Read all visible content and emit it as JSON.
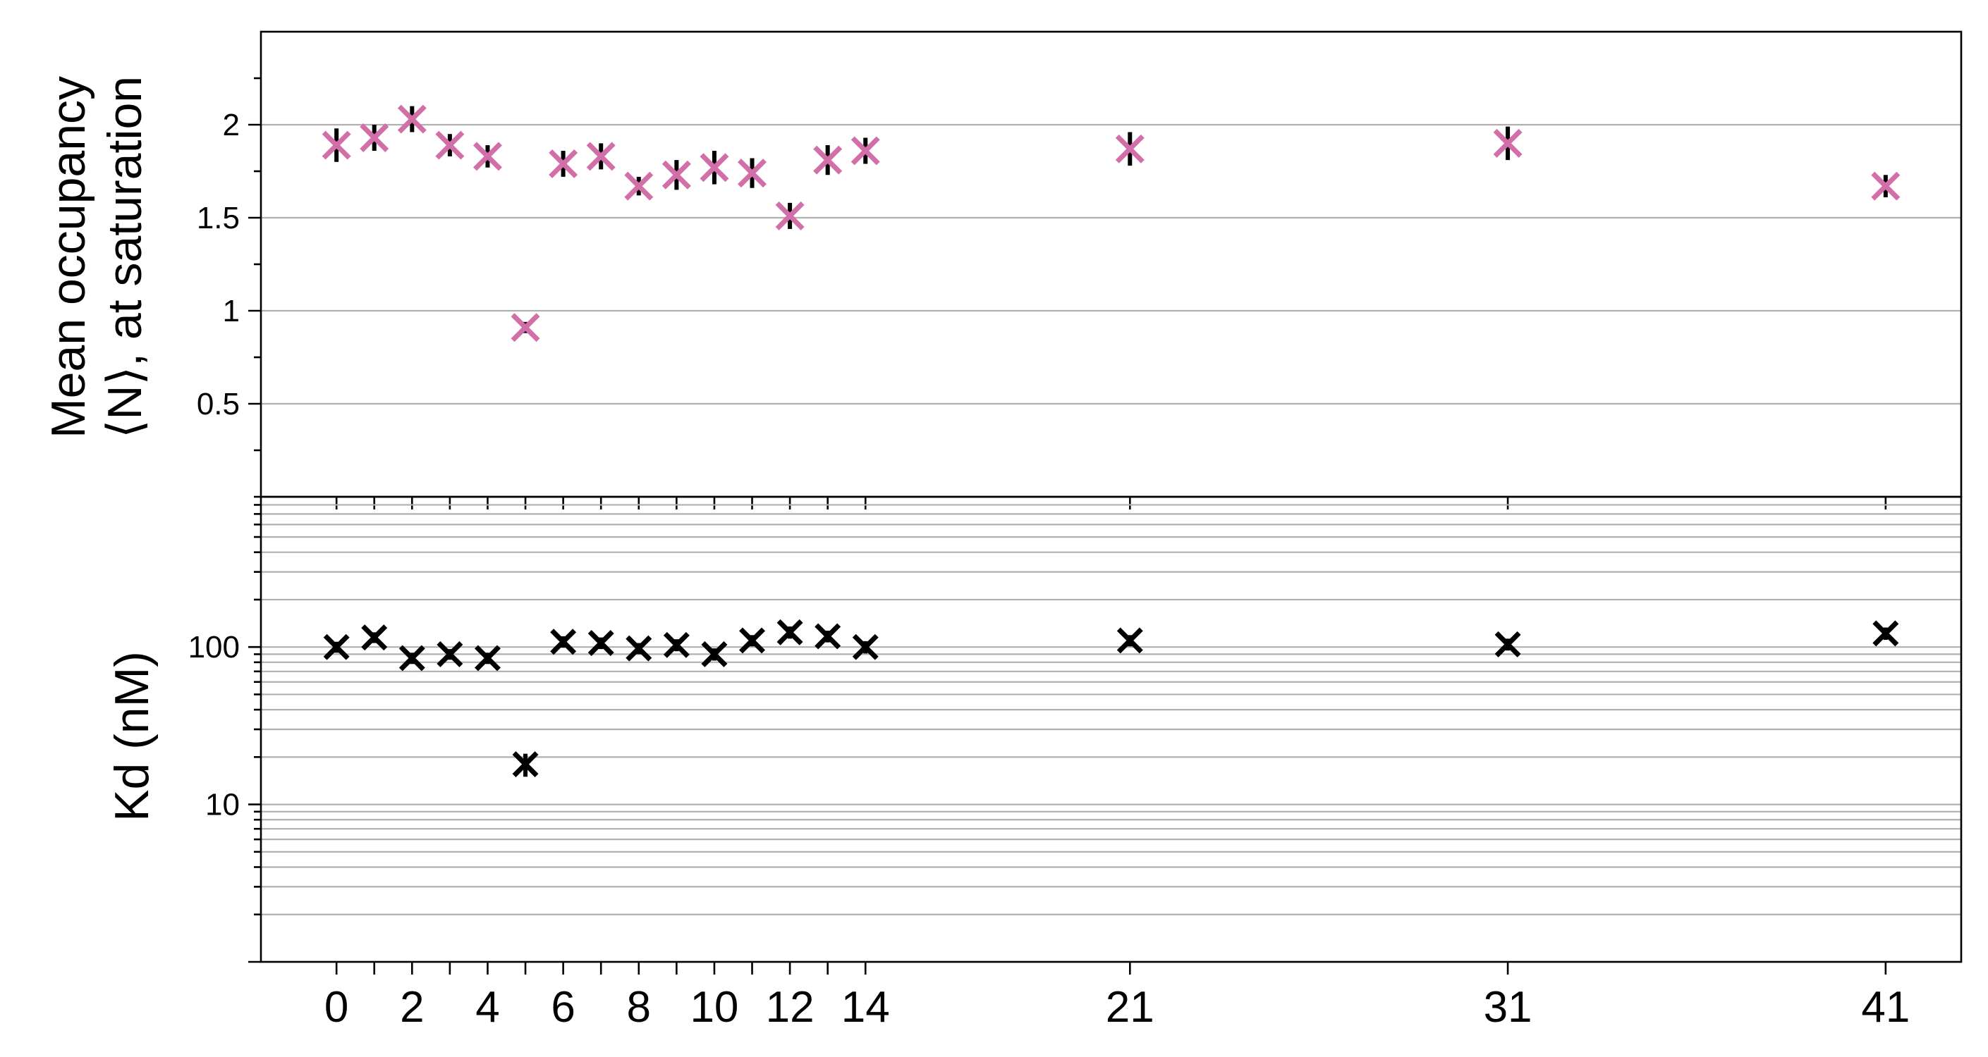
{
  "chart_data": [
    {
      "type": "scatter",
      "panel": "top",
      "ylabel_lines": [
        "Mean occupancy",
        "⟨N⟩, at saturation"
      ],
      "xlabel": "",
      "x": [
        0,
        1,
        2,
        3,
        4,
        5,
        6,
        7,
        8,
        9,
        10,
        11,
        12,
        13,
        14,
        21,
        31,
        41
      ],
      "series": [
        {
          "values": [
            1.89,
            1.93,
            2.03,
            1.89,
            1.83,
            0.91,
            1.79,
            1.83,
            1.67,
            1.73,
            1.77,
            1.74,
            1.51,
            1.81,
            1.86,
            1.87,
            1.9,
            1.67
          ],
          "errors": [
            0.09,
            0.07,
            0.07,
            0.06,
            0.06,
            0.03,
            0.07,
            0.07,
            0.05,
            0.08,
            0.09,
            0.08,
            0.07,
            0.08,
            0.07,
            0.09,
            0.09,
            0.06
          ],
          "marker": "x",
          "marker_color": "#d36fa8",
          "errorbar_color": "#000000"
        }
      ],
      "ylim": [
        0,
        2.5
      ],
      "yticks": [
        0.5,
        1,
        1.5,
        2
      ],
      "ytick_labels": [
        "0.5",
        "1",
        "1.5",
        "2"
      ],
      "grid": "horizontal"
    },
    {
      "type": "scatter",
      "panel": "bottom",
      "ylabel": "Kd (nM)",
      "xlabel": "",
      "yscale": "log",
      "x": [
        0,
        1,
        2,
        3,
        4,
        5,
        6,
        7,
        8,
        9,
        10,
        11,
        12,
        13,
        14,
        21,
        31,
        41
      ],
      "series": [
        {
          "values": [
            100,
            115,
            85,
            90,
            85,
            18,
            108,
            106,
            98,
            103,
            90,
            110,
            124,
            117,
            100,
            110,
            104,
            122
          ],
          "errors": [
            8,
            9,
            7,
            7,
            7,
            3,
            9,
            9,
            8,
            9,
            8,
            9,
            11,
            10,
            9,
            9,
            9,
            11
          ],
          "marker": "x",
          "marker_color": "#000000",
          "errorbar_color": "#000000"
        }
      ],
      "ylim": [
        1,
        900
      ],
      "yticks": [
        10,
        100
      ],
      "ytick_labels": [
        "10",
        "100"
      ],
      "grid": "horizontal major and minor"
    }
  ],
  "xticks": [
    0,
    1,
    2,
    3,
    4,
    5,
    6,
    7,
    8,
    9,
    10,
    11,
    12,
    13,
    14,
    21,
    31,
    41
  ],
  "xtick_labels": [
    "0",
    "2",
    "4",
    "6",
    "8",
    "10",
    "12",
    "14",
    "21",
    "31",
    "41"
  ],
  "xtick_label_positions": [
    0,
    2,
    4,
    6,
    8,
    10,
    12,
    14,
    21,
    31,
    41
  ],
  "xlim": [
    -2,
    43
  ]
}
